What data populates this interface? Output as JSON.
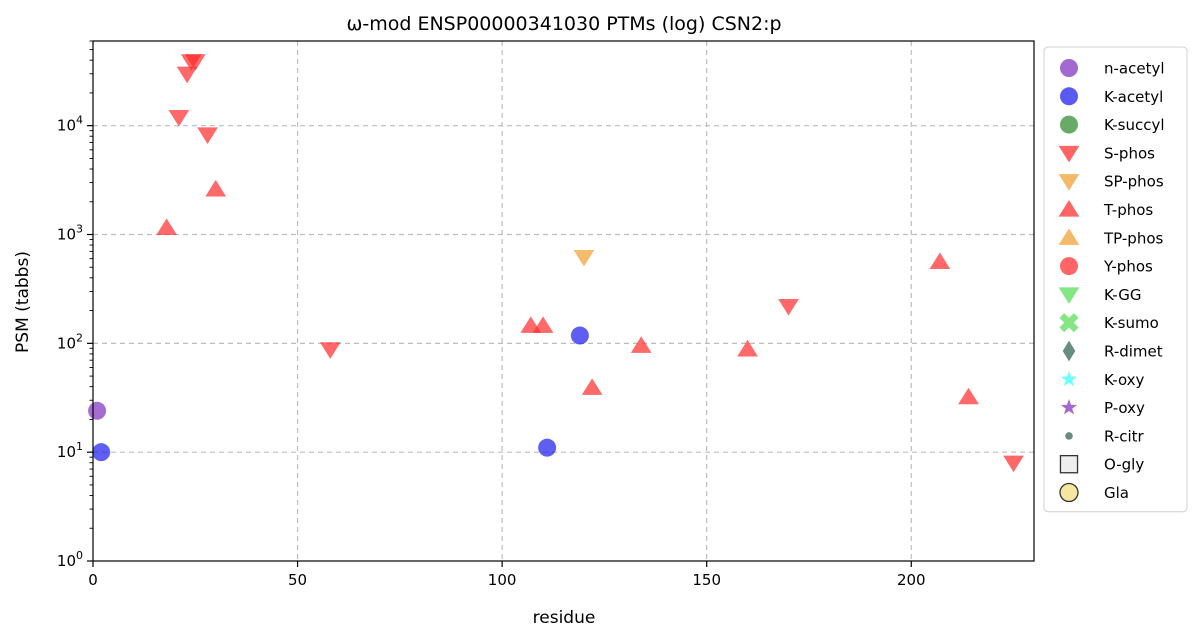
{
  "chart_data": {
    "type": "scatter",
    "title": "ω-mod ENSP00000341030 PTMs (log) CSN2:p",
    "xlabel": "residue",
    "ylabel": "PSM (tabbs)",
    "xlim": [
      0,
      230
    ],
    "ylim": [
      1,
      60000
    ],
    "yscale": "log",
    "x_ticks": [
      0,
      50,
      100,
      150,
      200
    ],
    "y_ticks": [
      {
        "value": 1,
        "base": "10",
        "exp": "0"
      },
      {
        "value": 10,
        "base": "10",
        "exp": "1"
      },
      {
        "value": 100,
        "base": "10",
        "exp": "2"
      },
      {
        "value": 1000,
        "base": "10",
        "exp": "3"
      },
      {
        "value": 10000,
        "base": "10",
        "exp": "4"
      }
    ],
    "grid": true,
    "legend_position": "outside-right",
    "series": [
      {
        "name": "n-acetyl",
        "marker": "circle",
        "color": "#7f2fbf",
        "x": [
          1
        ],
        "y": [
          24
        ]
      },
      {
        "name": "K-acetyl",
        "marker": "circle",
        "color": "#1a1aee",
        "x": [
          2,
          111,
          119
        ],
        "y": [
          10,
          11,
          118
        ]
      },
      {
        "name": "K-succyl",
        "marker": "circle",
        "color": "#2e8b2e",
        "x": [],
        "y": []
      },
      {
        "name": "S-phos",
        "marker": "triangle-down",
        "color": "#ff2a2a",
        "x": [
          21,
          23,
          24,
          25,
          28,
          58,
          170,
          225
        ],
        "y": [
          12000,
          30000,
          39000,
          39000,
          8300,
          88,
          220,
          8
        ]
      },
      {
        "name": "SP-phos",
        "marker": "triangle-down",
        "color": "#f0a030",
        "x": [
          120
        ],
        "y": [
          620
        ]
      },
      {
        "name": "T-phos",
        "marker": "triangle-up",
        "color": "#ff2a2a",
        "x": [
          18,
          30,
          107,
          110,
          122,
          134,
          160,
          207,
          214
        ],
        "y": [
          1150,
          2600,
          145,
          145,
          39,
          95,
          88,
          560,
          32
        ]
      },
      {
        "name": "TP-phos",
        "marker": "triangle-up",
        "color": "#f0a030",
        "x": [],
        "y": []
      },
      {
        "name": "Y-phos",
        "marker": "circle",
        "color": "#ff2a2a",
        "x": [],
        "y": []
      },
      {
        "name": "K-GG",
        "marker": "triangle-down",
        "color": "#55dd55",
        "x": [],
        "y": []
      },
      {
        "name": "K-sumo",
        "marker": "x-thick",
        "color": "#55dd55",
        "x": [],
        "y": []
      },
      {
        "name": "R-dimet",
        "marker": "diamond",
        "color": "#2f5f4f",
        "x": [],
        "y": []
      },
      {
        "name": "K-oxy",
        "marker": "star",
        "color": "#33ffff",
        "x": [],
        "y": []
      },
      {
        "name": "P-oxy",
        "marker": "star",
        "color": "#7f2fbf",
        "x": [],
        "y": []
      },
      {
        "name": "R-citr",
        "marker": "small-circle",
        "color": "#2f5f4f",
        "x": [],
        "y": []
      },
      {
        "name": "O-gly",
        "marker": "square-open",
        "color": "#eeeeee",
        "x": [],
        "y": []
      },
      {
        "name": "Gla",
        "marker": "circle-open",
        "color": "#f5e6a0",
        "x": [],
        "y": []
      }
    ]
  }
}
